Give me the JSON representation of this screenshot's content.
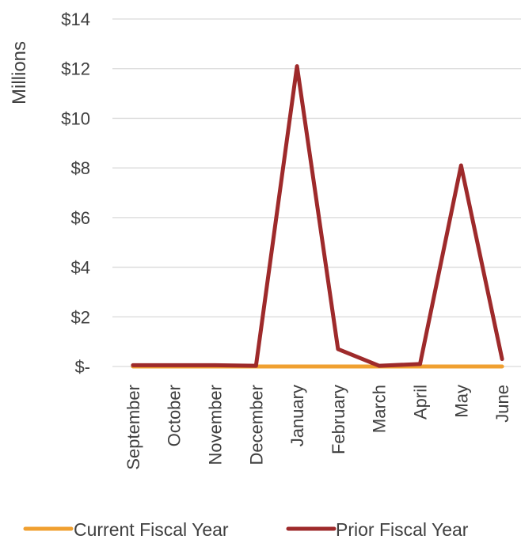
{
  "chart_data": {
    "type": "line",
    "title": "",
    "xlabel": "",
    "ylabel": "Millions",
    "categories": [
      "September",
      "October",
      "November",
      "December",
      "January",
      "February",
      "March",
      "April",
      "May",
      "June"
    ],
    "ylim": [
      0,
      14
    ],
    "yticks": [
      0,
      2,
      4,
      6,
      8,
      10,
      12,
      14
    ],
    "ytick_labels": [
      "$-",
      "$2",
      "$4",
      "$6",
      "$8",
      "$10",
      "$12",
      "$14"
    ],
    "grid": true,
    "legend_position": "bottom",
    "series": [
      {
        "name": "Current Fiscal Year",
        "color": "#F0A030",
        "values": [
          0,
          0,
          0,
          0,
          0,
          0,
          0,
          0,
          0,
          0
        ]
      },
      {
        "name": "Prior Fiscal Year",
        "color": "#9E2A2B",
        "values": [
          0.05,
          0.05,
          0.05,
          0.03,
          12.1,
          0.7,
          0.03,
          0.1,
          8.1,
          0.3
        ]
      }
    ]
  }
}
